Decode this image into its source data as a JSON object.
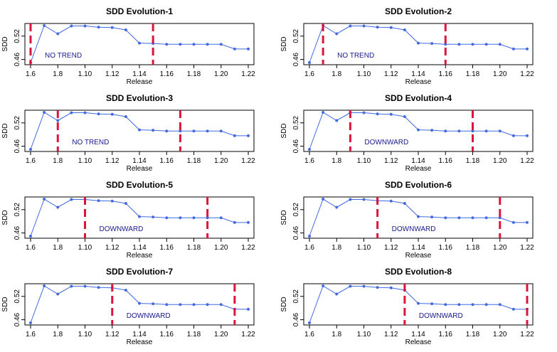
{
  "chart_data": [
    {
      "type": "line",
      "title": "SDD Evolution-1",
      "xlabel": "Release",
      "ylabel": "SDD",
      "trend_label": "NO TREND",
      "breakpoints": [
        "1.6",
        "1.15"
      ]
    },
    {
      "type": "line",
      "title": "SDD Evolution-2",
      "xlabel": "Release",
      "ylabel": "SDD",
      "trend_label": "NO TREND",
      "breakpoints": [
        "1.7",
        "1.16"
      ]
    },
    {
      "type": "line",
      "title": "SDD Evolution-3",
      "xlabel": "Release",
      "ylabel": "SDD",
      "trend_label": "NO TREND",
      "breakpoints": [
        "1.8",
        "1.17"
      ]
    },
    {
      "type": "line",
      "title": "SDD Evolution-4",
      "xlabel": "Release",
      "ylabel": "SDD",
      "trend_label": "DOWNWARD",
      "breakpoints": [
        "1.9",
        "1.18"
      ]
    },
    {
      "type": "line",
      "title": "SDD Evolution-5",
      "xlabel": "Release",
      "ylabel": "SDD",
      "trend_label": "DOWNWARD",
      "breakpoints": [
        "1.10",
        "1.19"
      ]
    },
    {
      "type": "line",
      "title": "SDD Evolution-6",
      "xlabel": "Release",
      "ylabel": "SDD",
      "trend_label": "DOWNWARD",
      "breakpoints": [
        "1.11",
        "1.20"
      ]
    },
    {
      "type": "line",
      "title": "SDD Evolution-7",
      "xlabel": "Release",
      "ylabel": "SDD",
      "trend_label": "DOWNWARD",
      "breakpoints": [
        "1.12",
        "1.21"
      ]
    },
    {
      "type": "line",
      "title": "SDD Evolution-8",
      "xlabel": "Release",
      "ylabel": "SDD",
      "trend_label": "DOWNWARD",
      "breakpoints": [
        "1.13",
        "1.22"
      ]
    }
  ],
  "shared": {
    "categories": [
      "1.6",
      "1.7",
      "1.8",
      "1.9",
      "1.10",
      "1.11",
      "1.12",
      "1.13",
      "1.14",
      "1.15",
      "1.16",
      "1.17",
      "1.18",
      "1.19",
      "1.20",
      "1.21",
      "1.22"
    ],
    "values": [
      0.452,
      0.547,
      0.526,
      0.546,
      0.546,
      0.543,
      0.542,
      0.536,
      0.502,
      0.501,
      0.499,
      0.499,
      0.499,
      0.499,
      0.499,
      0.487,
      0.487
    ],
    "x_tick_labels": [
      "1.6",
      "1.8",
      "1.10",
      "1.12",
      "1.14",
      "1.16",
      "1.18",
      "1.20",
      "1.22"
    ],
    "y_ticks": [
      0.46,
      0.52
    ],
    "y_tick_labels": [
      "0.46",
      "0.52"
    ],
    "ylim": [
      0.452,
      0.547
    ],
    "line_color": "#4169e1",
    "breakpoint_color": "#dc143c",
    "trend_text_color": "#1a1a8c"
  }
}
